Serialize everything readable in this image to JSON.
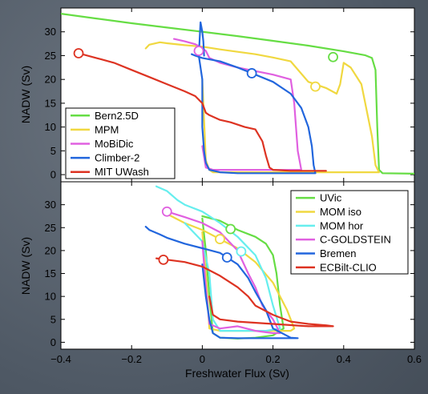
{
  "chart_data": [
    {
      "type": "line",
      "title": "",
      "xlabel": "",
      "ylabel": "NADW (Sv)",
      "xlim": [
        -0.4,
        0.6
      ],
      "ylim": [
        -1.5,
        35
      ],
      "yticks": [
        "0",
        "5",
        "10",
        "15",
        "20",
        "25",
        "30"
      ],
      "legend_position": "bottom-left",
      "series": [
        {
          "name": "Bern2.5D",
          "color": "#66dd44",
          "x": [
            -0.4,
            -0.3,
            -0.2,
            -0.1,
            0.0,
            0.1,
            0.2,
            0.3,
            0.4,
            0.46,
            0.48,
            0.49,
            0.495,
            0.5,
            0.51,
            0.6
          ],
          "y": [
            33.8,
            32.8,
            31.8,
            30.9,
            30.0,
            29.1,
            28.1,
            27.1,
            25.9,
            25.1,
            24.5,
            22.0,
            10.0,
            1.0,
            0.3,
            0.2
          ],
          "marker": [
            0.37,
            24.7
          ]
        },
        {
          "name": "MPM",
          "color": "#f0d840",
          "x": [
            -0.16,
            -0.15,
            -0.12,
            -0.1,
            -0.05,
            0.0,
            0.05,
            0.1,
            0.15,
            0.2,
            0.25,
            0.3,
            0.35,
            0.38,
            0.39,
            0.4,
            0.42,
            0.45,
            0.48,
            0.49,
            0.5,
            0.45,
            0.3,
            0.2,
            0.1,
            0.05,
            0.03,
            0.02,
            0.01,
            0.0
          ],
          "y": [
            26.5,
            27.3,
            27.8,
            27.6,
            27.2,
            26.9,
            26.3,
            25.8,
            25.3,
            24.6,
            23.8,
            19.5,
            18.2,
            17.0,
            19.0,
            23.5,
            22.5,
            19.0,
            8.0,
            2.0,
            0.5,
            0.5,
            0.5,
            0.5,
            0.5,
            0.5,
            0.5,
            1.0,
            3.0,
            20.0
          ],
          "marker": [
            0.32,
            18.5
          ]
        },
        {
          "name": "MoBiDic",
          "color": "#e060e0",
          "x": [
            -0.08,
            -0.05,
            -0.02,
            -0.01,
            0.0,
            0.01,
            0.02,
            0.05,
            0.1,
            0.2,
            0.25,
            0.26,
            0.27,
            0.28,
            0.25,
            0.1,
            0.03,
            0.01,
            0.0
          ],
          "y": [
            28.5,
            28.0,
            27.4,
            27.0,
            26.5,
            26.0,
            24.5,
            23.5,
            22.5,
            21.0,
            20.0,
            15.0,
            5.0,
            1.0,
            1.0,
            1.0,
            1.0,
            1.5,
            6.0
          ],
          "marker": [
            -0.01,
            26.0
          ]
        },
        {
          "name": "Climber-2",
          "color": "#2266dd",
          "x": [
            -0.03,
            -0.02,
            0.0,
            0.05,
            0.1,
            0.14,
            0.2,
            0.25,
            0.28,
            0.3,
            0.31,
            0.315,
            0.32,
            0.3,
            0.2,
            0.1,
            0.05,
            0.02,
            0.01,
            0.005,
            0.0,
            0.0,
            -0.01,
            -0.005,
            0.0,
            0.003,
            0.005
          ],
          "y": [
            25.3,
            25.0,
            24.5,
            23.8,
            22.5,
            21.3,
            19.5,
            17.0,
            14.0,
            10.0,
            6.0,
            2.0,
            0.3,
            0.3,
            0.3,
            0.3,
            0.5,
            1.0,
            2.5,
            5.0,
            10.0,
            20.0,
            25.0,
            32.0,
            30.0,
            28.0,
            25.0
          ],
          "marker": [
            0.14,
            21.3
          ]
        },
        {
          "name": "MIT UWash",
          "color": "#dd3322",
          "x": [
            -0.35,
            -0.3,
            -0.25,
            -0.2,
            -0.15,
            -0.1,
            -0.05,
            -0.02,
            0.0,
            0.01,
            0.02,
            0.05,
            0.08,
            0.12,
            0.15,
            0.17,
            0.18,
            0.19,
            0.2,
            0.25,
            0.3,
            0.35
          ],
          "y": [
            25.5,
            24.5,
            23.5,
            22.0,
            20.5,
            19.0,
            17.5,
            16.5,
            15.0,
            13.0,
            12.5,
            11.5,
            11.0,
            10.0,
            9.5,
            7.0,
            4.0,
            1.5,
            1.0,
            0.8,
            0.8,
            0.8
          ],
          "marker": [
            -0.35,
            25.5
          ]
        }
      ]
    },
    {
      "type": "line",
      "title": "",
      "xlabel": "Freshwater Flux (Sv)",
      "ylabel": "NADW (Sv)",
      "xlim": [
        -0.4,
        0.6
      ],
      "ylim": [
        -1.5,
        35
      ],
      "xticks": [
        "−0.4",
        "−0.2",
        "0",
        "0.2",
        "0.4",
        "0.6"
      ],
      "yticks": [
        "0",
        "5",
        "10",
        "15",
        "20",
        "25",
        "30"
      ],
      "legend_position": "top-right",
      "series": [
        {
          "name": "UVic",
          "color": "#66dd44",
          "x": [
            0.0,
            0.05,
            0.1,
            0.15,
            0.18,
            0.2,
            0.21,
            0.22,
            0.23,
            0.2,
            0.15,
            0.1,
            0.05,
            0.03,
            0.02,
            0.01,
            0.0
          ],
          "y": [
            27.5,
            26.5,
            24.5,
            23.0,
            21.5,
            19.0,
            15.0,
            8.0,
            3.0,
            1.5,
            1.0,
            0.8,
            1.0,
            2.0,
            10.0,
            20.0,
            27.0
          ],
          "marker": [
            0.08,
            24.7
          ]
        },
        {
          "name": "MOM iso",
          "color": "#f0d840",
          "x": [
            -0.1,
            -0.05,
            0.0,
            0.05,
            0.1,
            0.15,
            0.2,
            0.24,
            0.26,
            0.25,
            0.2,
            0.1,
            0.05,
            0.02,
            0.01,
            0.0
          ],
          "y": [
            28.0,
            26.0,
            24.5,
            22.5,
            20.5,
            17.5,
            13.0,
            7.0,
            3.0,
            2.5,
            2.5,
            2.5,
            2.5,
            3.0,
            15.0,
            24.0
          ],
          "marker": [
            0.05,
            22.5
          ]
        },
        {
          "name": "MOM hor",
          "color": "#66eeee",
          "x": [
            -0.13,
            -0.1,
            -0.07,
            -0.05,
            0.0,
            0.05,
            0.1,
            0.15,
            0.18,
            0.2,
            0.22,
            0.18,
            0.1,
            0.05,
            0.03,
            0.02,
            0.0,
            -0.05
          ],
          "y": [
            34.0,
            33.0,
            31.0,
            30.0,
            28.5,
            26.0,
            23.0,
            19.0,
            14.0,
            8.0,
            3.0,
            2.5,
            2.5,
            2.5,
            5.0,
            15.0,
            22.0,
            26.0
          ],
          "marker": [
            0.11,
            19.8
          ]
        },
        {
          "name": "C-GOLDSTEIN",
          "color": "#e060e0",
          "x": [
            -0.1,
            -0.05,
            0.0,
            0.05,
            0.1,
            0.13,
            0.15,
            0.17,
            0.2,
            0.22,
            0.2,
            0.15,
            0.1,
            0.05,
            0.02,
            0.01,
            0.0
          ],
          "y": [
            28.5,
            27.3,
            26.0,
            24.0,
            20.0,
            15.0,
            12.0,
            8.0,
            5.0,
            2.0,
            2.0,
            2.5,
            3.5,
            3.0,
            4.0,
            12.0,
            22.0
          ],
          "marker": [
            -0.1,
            28.5
          ]
        },
        {
          "name": "Bremen",
          "color": "#2266dd",
          "x": [
            -0.16,
            -0.15,
            -0.12,
            -0.1,
            -0.05,
            0.0,
            0.05,
            0.07,
            0.1,
            0.13,
            0.15,
            0.18,
            0.2,
            0.25,
            0.27,
            0.2,
            0.1,
            0.05,
            0.03,
            0.02,
            0.01,
            0.0
          ],
          "y": [
            25.2,
            24.5,
            23.5,
            22.8,
            21.5,
            20.5,
            19.5,
            18.5,
            17.0,
            14.0,
            11.0,
            7.0,
            3.0,
            1.0,
            0.9,
            0.9,
            0.9,
            1.0,
            2.0,
            5.0,
            10.0,
            17.0
          ],
          "marker": [
            0.07,
            18.5
          ]
        },
        {
          "name": "ECBilt-CLIO",
          "color": "#dd3322",
          "x": [
            -0.13,
            -0.1,
            -0.05,
            0.0,
            0.05,
            0.1,
            0.13,
            0.15,
            0.2,
            0.25,
            0.3,
            0.35,
            0.37,
            0.3,
            0.2,
            0.1,
            0.05,
            0.03,
            0.02
          ],
          "y": [
            18.3,
            18.0,
            17.5,
            16.5,
            14.5,
            12.0,
            10.0,
            8.0,
            6.0,
            4.5,
            4.0,
            3.7,
            3.5,
            3.5,
            4.0,
            4.5,
            5.0,
            6.0,
            10.0
          ],
          "marker": [
            -0.11,
            18.0
          ]
        }
      ]
    }
  ]
}
